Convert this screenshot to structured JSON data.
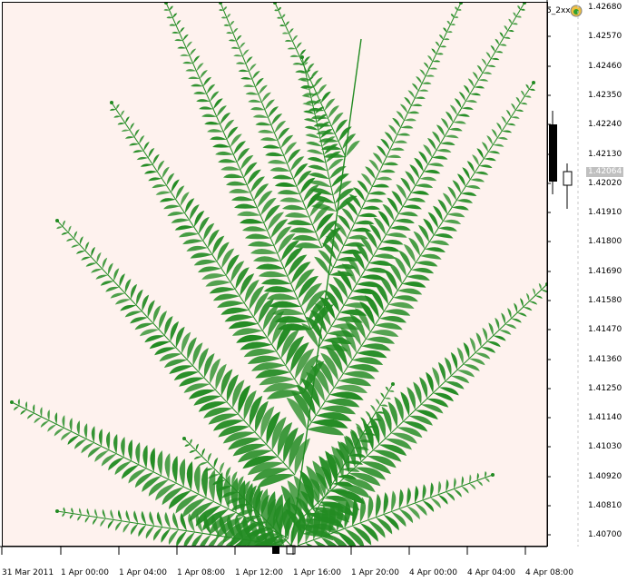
{
  "window": {
    "symbol_label": "5_2xx",
    "icon": "expert-advisor-icon"
  },
  "price_axis": {
    "labels": [
      "1.42680",
      "1.42570",
      "1.42460",
      "1.42350",
      "1.42240",
      "1.42130",
      "1.42020",
      "1.41910",
      "1.41800",
      "1.41690",
      "1.41580",
      "1.41470",
      "1.41360",
      "1.41250",
      "1.41140",
      "1.41030",
      "1.40920",
      "1.40810",
      "1.40700"
    ],
    "current_price": "1.42064"
  },
  "time_axis": {
    "labels": [
      "31 Mar 2011",
      "1 Apr 00:00",
      "1 Apr 04:00",
      "1 Apr 08:00",
      "1 Apr 12:00",
      "1 Apr 16:00",
      "1 Apr 20:00",
      "4 Apr 00:00",
      "4 Apr 04:00",
      "4 Apr 08:00"
    ]
  },
  "colors": {
    "plot_background": "#fef2ee",
    "fern": "#228b22",
    "bear_candle": "#000000",
    "bull_candle": "#ffffff"
  }
}
